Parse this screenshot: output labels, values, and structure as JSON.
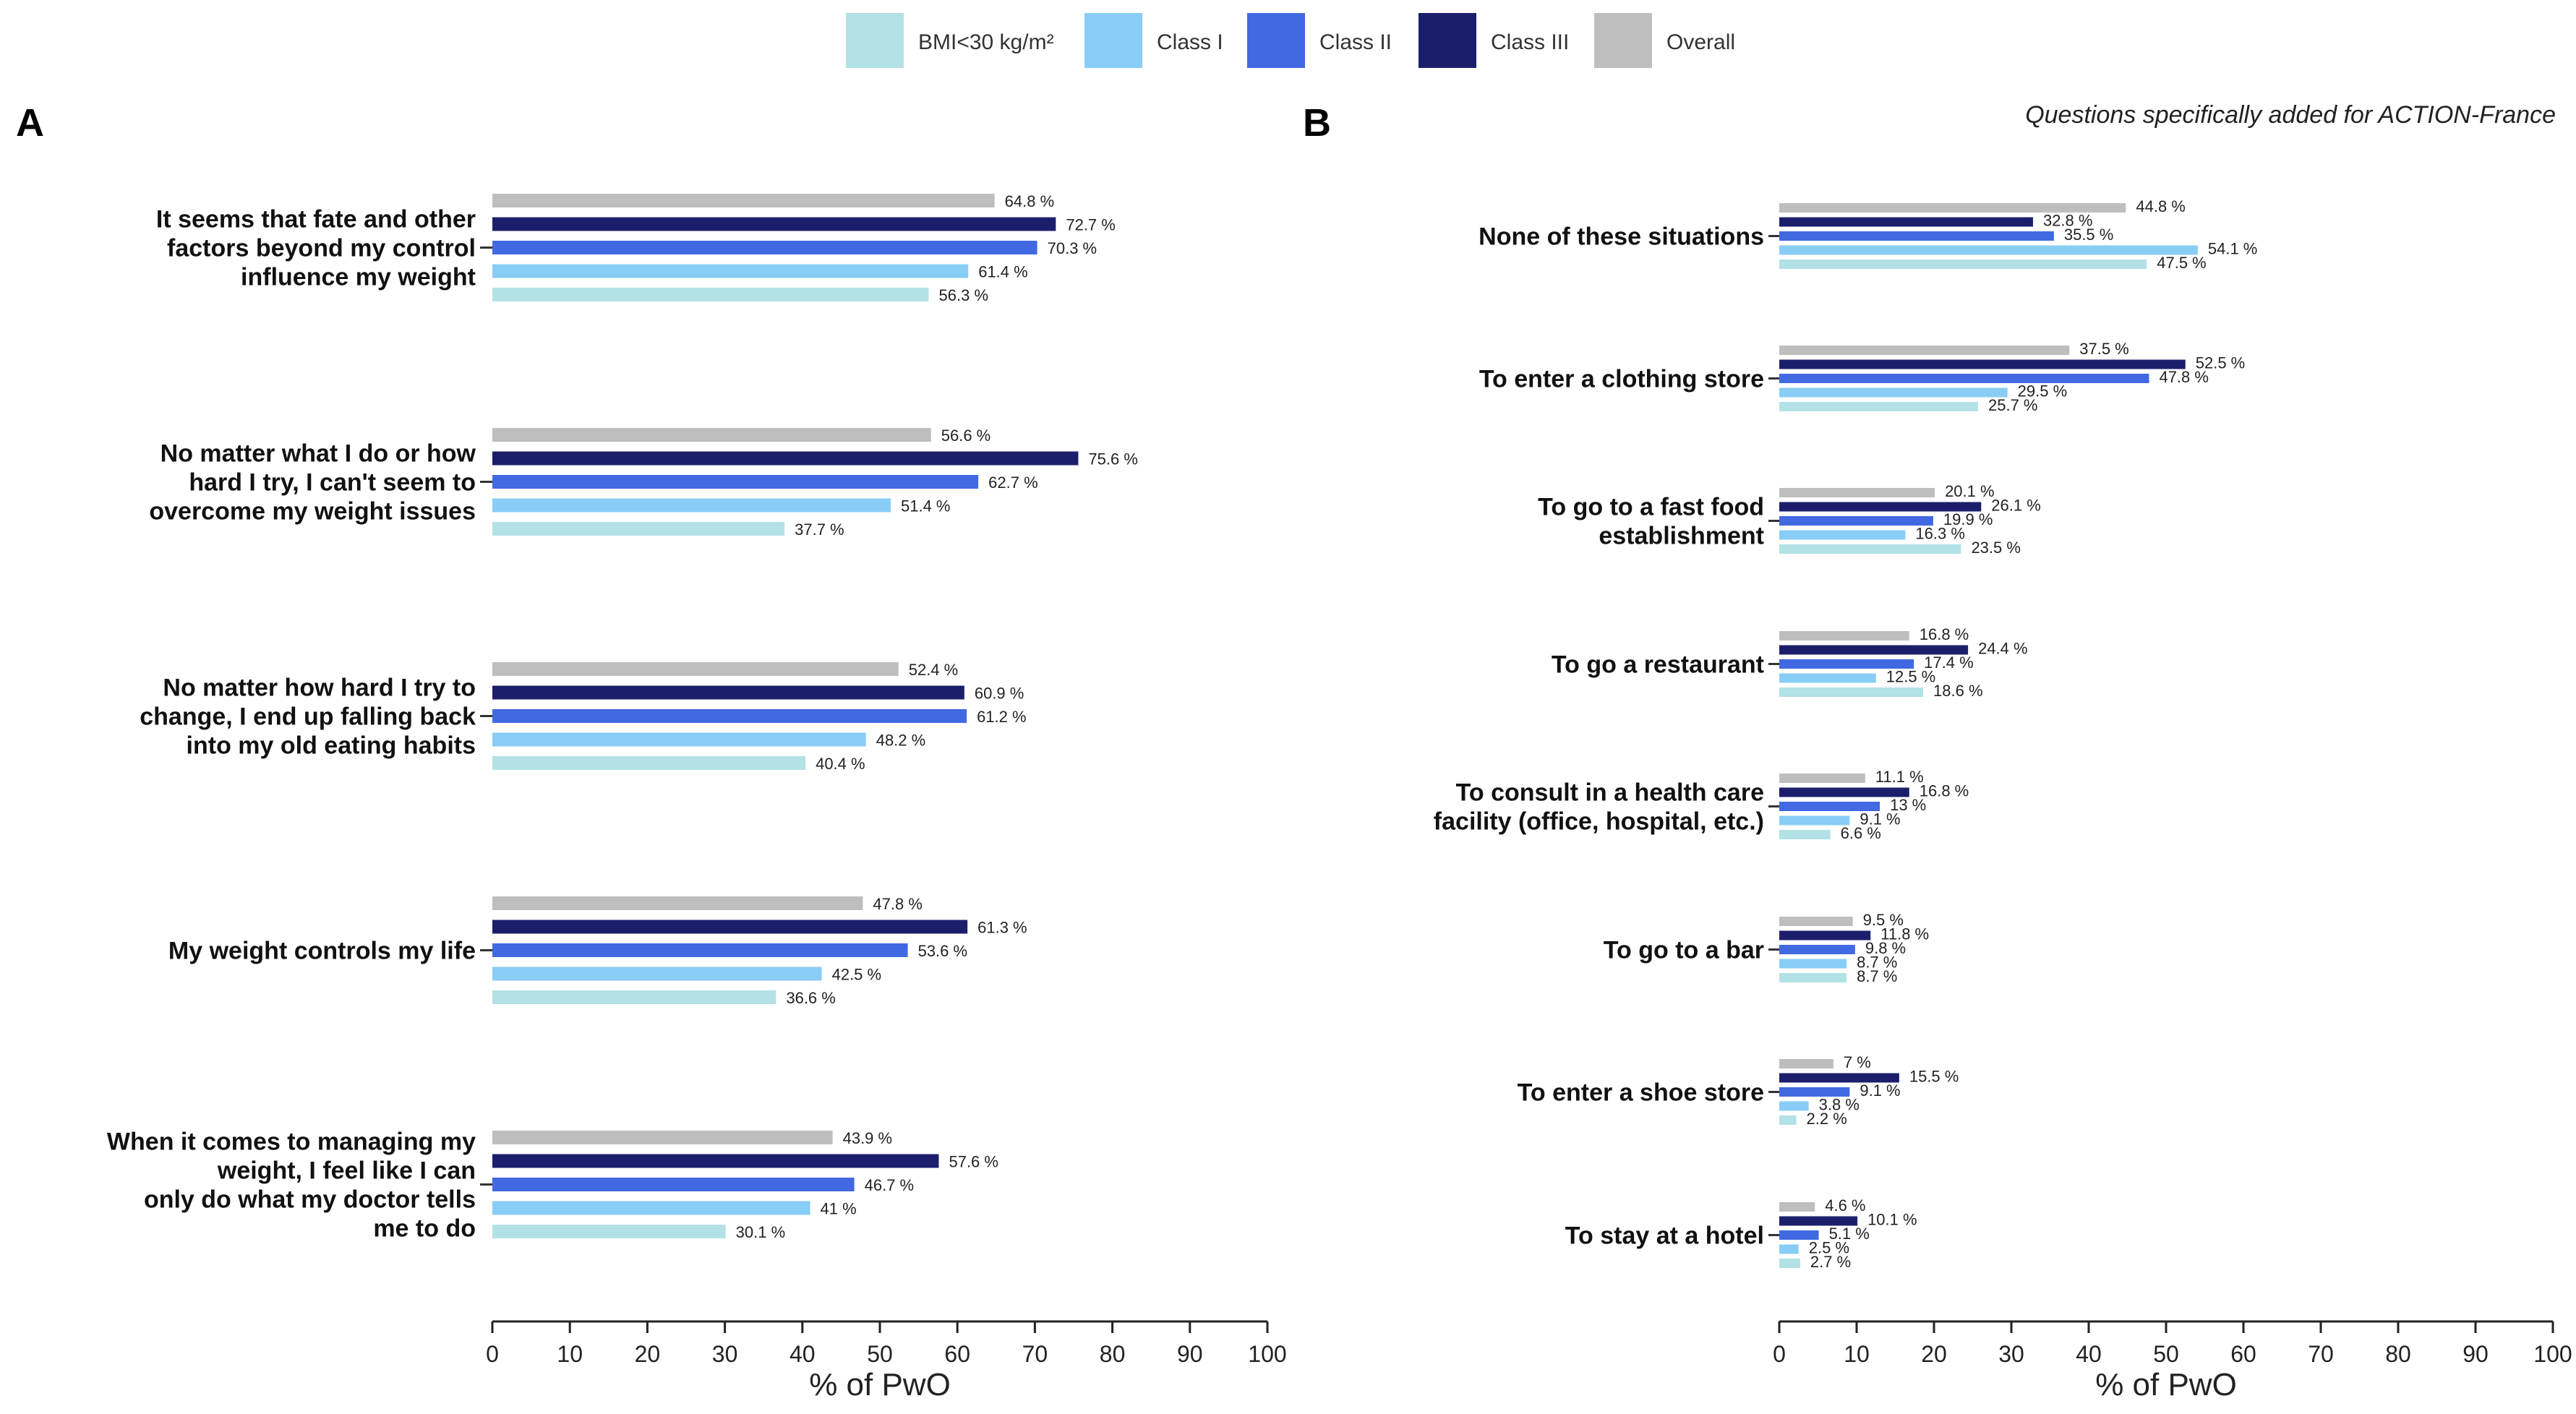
{
  "legend": [
    {
      "key": "bmi_lt_30",
      "label": "BMI<30 kg/m²",
      "color": "#b2e1e6"
    },
    {
      "key": "class1",
      "label": "Class I",
      "color": "#88cdf5"
    },
    {
      "key": "class2",
      "label": "Class II",
      "color": "#4169e1"
    },
    {
      "key": "class3",
      "label": "Class III",
      "color": "#1b1f6b"
    },
    {
      "key": "overall",
      "label": "Overall",
      "color": "#bebebe"
    }
  ],
  "chart_data": [
    {
      "panel": "A",
      "type": "bar",
      "orientation": "horizontal",
      "subtitle": "",
      "xlabel": "% of PwO",
      "xlim": [
        0,
        100
      ],
      "xticks": [
        0,
        10,
        20,
        30,
        40,
        50,
        60,
        70,
        80,
        90,
        100
      ],
      "series_order": [
        "overall",
        "class3",
        "class2",
        "class1",
        "bmi_lt_30"
      ],
      "value_suffix": " %",
      "categories": [
        {
          "label": [
            "It seems that fate and other",
            "factors beyond my control",
            "influence my weight"
          ],
          "values": {
            "overall": 64.8,
            "class3": 72.7,
            "class2": 70.3,
            "class1": 61.4,
            "bmi_lt_30": 56.3
          }
        },
        {
          "label": [
            "No matter what I do or how",
            "hard I try, I can't seem to",
            "overcome my weight issues"
          ],
          "values": {
            "overall": 56.6,
            "class3": 75.6,
            "class2": 62.7,
            "class1": 51.4,
            "bmi_lt_30": 37.7
          }
        },
        {
          "label": [
            "No matter how hard I try to",
            "change, I end up falling back",
            "into my old eating habits"
          ],
          "values": {
            "overall": 52.4,
            "class3": 60.9,
            "class2": 61.2,
            "class1": 48.2,
            "bmi_lt_30": 40.4
          }
        },
        {
          "label": [
            "My weight controls my life"
          ],
          "values": {
            "overall": 47.8,
            "class3": 61.3,
            "class2": 53.6,
            "class1": 42.5,
            "bmi_lt_30": 36.6
          }
        },
        {
          "label": [
            "When it comes to managing my",
            "weight, I feel like I can",
            "only do what my doctor tells",
            "me to do"
          ],
          "values": {
            "overall": 43.9,
            "class3": 57.6,
            "class2": 46.7,
            "class1": 41,
            "bmi_lt_30": 30.1
          }
        }
      ]
    },
    {
      "panel": "B",
      "type": "bar",
      "orientation": "horizontal",
      "subtitle": "Questions specifically added for ACTION-France",
      "xlabel": "% of PwO",
      "xlim": [
        0,
        100
      ],
      "xticks": [
        0,
        10,
        20,
        30,
        40,
        50,
        60,
        70,
        80,
        90,
        100
      ],
      "series_order": [
        "overall",
        "class3",
        "class2",
        "class1",
        "bmi_lt_30"
      ],
      "value_suffix": " %",
      "categories": [
        {
          "label": [
            "None of these situations"
          ],
          "values": {
            "overall": 44.8,
            "class3": 32.8,
            "class2": 35.5,
            "class1": 54.1,
            "bmi_lt_30": 47.5
          }
        },
        {
          "label": [
            "To enter a clothing store"
          ],
          "values": {
            "overall": 37.5,
            "class3": 52.5,
            "class2": 47.8,
            "class1": 29.5,
            "bmi_lt_30": 25.7
          }
        },
        {
          "label": [
            "To go to a fast food",
            "establishment"
          ],
          "values": {
            "overall": 20.1,
            "class3": 26.1,
            "class2": 19.9,
            "class1": 16.3,
            "bmi_lt_30": 23.5
          }
        },
        {
          "label": [
            "To go a restaurant"
          ],
          "values": {
            "overall": 16.8,
            "class3": 24.4,
            "class2": 17.4,
            "class1": 12.5,
            "bmi_lt_30": 18.6
          }
        },
        {
          "label": [
            "To consult in a health care",
            "facility (office, hospital, etc.)"
          ],
          "values": {
            "overall": 11.1,
            "class3": 16.8,
            "class2": 13,
            "class1": 9.1,
            "bmi_lt_30": 6.6
          }
        },
        {
          "label": [
            "To go to a bar"
          ],
          "values": {
            "overall": 9.5,
            "class3": 11.8,
            "class2": 9.8,
            "class1": 8.7,
            "bmi_lt_30": 8.7
          }
        },
        {
          "label": [
            "To enter a shoe store"
          ],
          "values": {
            "overall": 7,
            "class3": 15.5,
            "class2": 9.1,
            "class1": 3.8,
            "bmi_lt_30": 2.2
          }
        },
        {
          "label": [
            "To stay at a hotel"
          ],
          "values": {
            "overall": 4.6,
            "class3": 10.1,
            "class2": 5.1,
            "class1": 2.5,
            "bmi_lt_30": 2.7
          }
        }
      ]
    }
  ]
}
